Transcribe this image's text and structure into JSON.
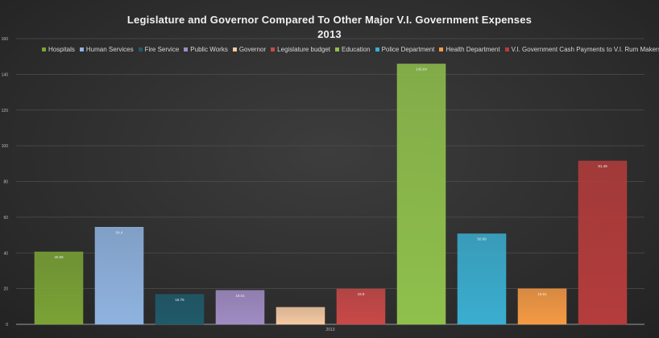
{
  "chart_data": {
    "type": "bar",
    "title_line1": "Legislature and Governor Compared To Other Major V.I. Government Expenses",
    "title_line2": "2013",
    "categories": [
      "2013"
    ],
    "ylim": [
      0,
      160
    ],
    "yticks": [
      "0",
      "20",
      "40",
      "60",
      "80",
      "100",
      "120",
      "140",
      "160"
    ],
    "grid": true,
    "legend_position": "top",
    "series": [
      {
        "name": "Hospitals",
        "value": 40.56,
        "label": "40.56",
        "color": "#7aa336"
      },
      {
        "name": "Human Services",
        "value": 54.4,
        "label": "54.4",
        "color": "#8fb3e0"
      },
      {
        "name": "Fire Service",
        "value": 16.76,
        "label": "16.76",
        "color": "#1f5a6b"
      },
      {
        "name": "Public Works",
        "value": 19.0,
        "label": "19.01",
        "color": "#a08cc4"
      },
      {
        "name": "Governor",
        "value": 9.5,
        "label": "",
        "color": "#f5c9a3"
      },
      {
        "name": "Legislature budget",
        "value": 19.8,
        "label": "19.8",
        "color": "#c94848"
      },
      {
        "name": "Education",
        "value": 145.8,
        "label": "145.84",
        "color": "#8fc04c"
      },
      {
        "name": "Police Department",
        "value": 50.69,
        "label": "50.69",
        "color": "#3aaed0"
      },
      {
        "name": "Health Department",
        "value": 19.91,
        "label": "19.91",
        "color": "#f59a45"
      },
      {
        "name": "V.I. Government Cash Payments to V.I. Rum Makers",
        "value": 91.49,
        "label": "91.49",
        "color": "#b53c3c"
      }
    ]
  }
}
